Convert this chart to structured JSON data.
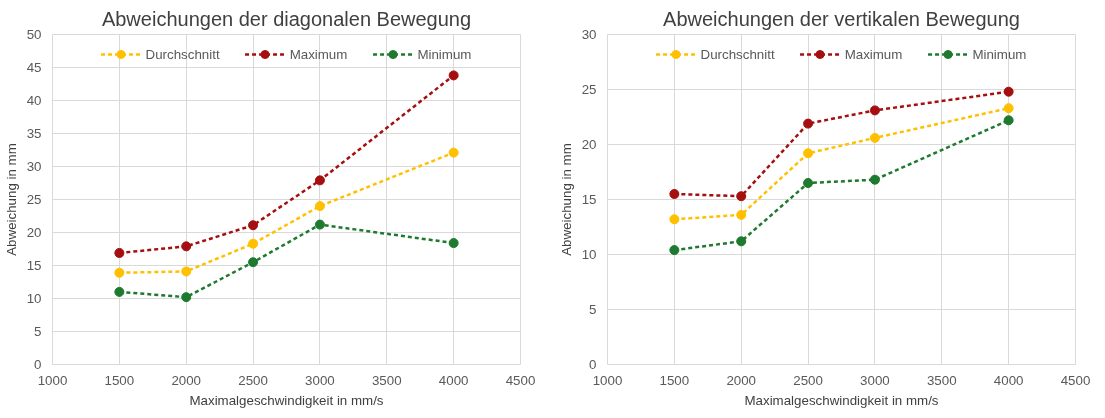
{
  "chart_data": [
    {
      "type": "line",
      "title": "Abweichungen der diagonalen Bewegung",
      "xlabel": "Maximalgeschwindigkeit in mm/s",
      "ylabel": "Abweichung in mm",
      "x": [
        1500,
        2000,
        2500,
        3000,
        4000
      ],
      "xlim": [
        1000,
        4500
      ],
      "xticks": [
        1000,
        1500,
        2000,
        2500,
        3000,
        3500,
        4000,
        4500
      ],
      "ylim": [
        0,
        50
      ],
      "yticks": [
        0,
        5,
        10,
        15,
        20,
        25,
        30,
        35,
        40,
        45,
        50
      ],
      "grid": true,
      "legend": "top",
      "marker": "circle",
      "line_style": "dashed",
      "series": [
        {
          "name": "Durchschnitt",
          "color": "#ffc000",
          "values": [
            13.9,
            14.1,
            18.3,
            24.0,
            32.1
          ]
        },
        {
          "name": "Maximum",
          "color": "#a50f0f",
          "values": [
            16.9,
            17.9,
            21.1,
            27.9,
            43.8
          ]
        },
        {
          "name": "Minimum",
          "color": "#1e7a2e",
          "values": [
            11.0,
            10.2,
            15.5,
            21.2,
            18.4
          ]
        }
      ]
    },
    {
      "type": "line",
      "title": "Abweichungen der vertikalen Bewegung",
      "xlabel": "Maximalgeschwindigkeit in mm/s",
      "ylabel": "Abweichung in mm",
      "x": [
        1500,
        2000,
        2500,
        3000,
        4000
      ],
      "xlim": [
        1000,
        4500
      ],
      "xticks": [
        1000,
        1500,
        2000,
        2500,
        3000,
        3500,
        4000,
        4500
      ],
      "ylim": [
        0,
        30
      ],
      "yticks": [
        0,
        5,
        10,
        15,
        20,
        25,
        30
      ],
      "grid": true,
      "legend": "top",
      "marker": "circle",
      "line_style": "dashed",
      "series": [
        {
          "name": "Durchschnitt",
          "color": "#ffc000",
          "values": [
            13.2,
            13.6,
            19.2,
            20.6,
            23.3
          ]
        },
        {
          "name": "Maximum",
          "color": "#a50f0f",
          "values": [
            15.5,
            15.3,
            21.9,
            23.1,
            24.8
          ]
        },
        {
          "name": "Minimum",
          "color": "#1e7a2e",
          "values": [
            10.4,
            11.2,
            16.5,
            16.8,
            22.2
          ]
        }
      ]
    }
  ]
}
